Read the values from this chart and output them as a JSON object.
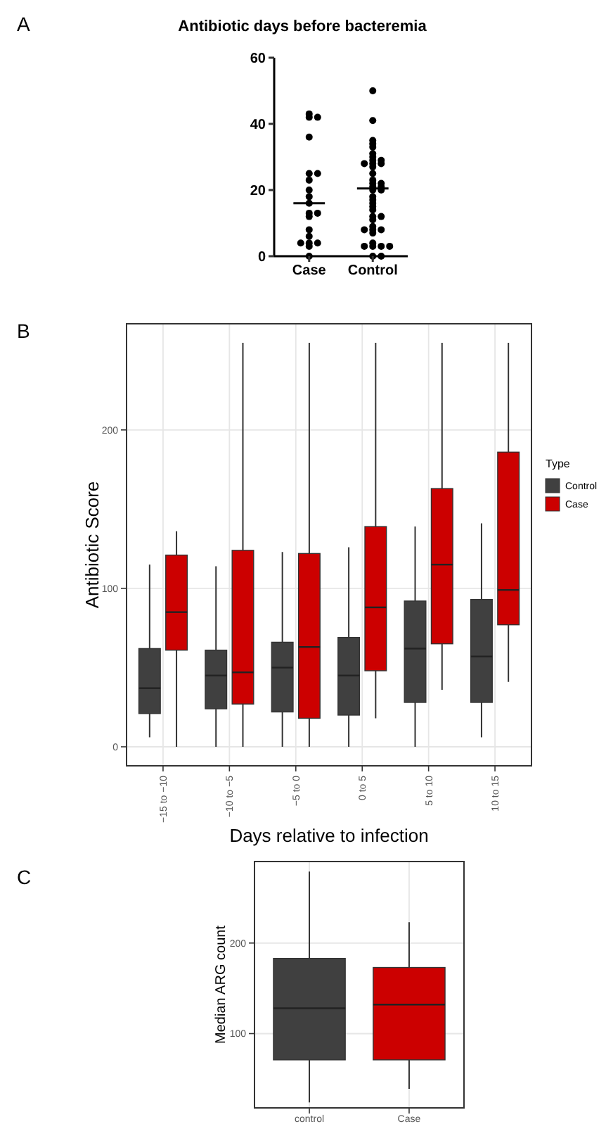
{
  "chart_data": [
    {
      "type": "scatter",
      "title": "Antibiotic days before bacteremia",
      "annotations": [
        "A"
      ],
      "categories": [
        "Case",
        "Control"
      ],
      "ylim": [
        0,
        60
      ],
      "yticks": [
        0,
        20,
        40,
        60
      ],
      "grid": false,
      "marker": "circle",
      "series": [
        {
          "color": "#000000",
          "x": [
            "Case",
            "Case",
            "Case",
            "Case",
            "Case",
            "Case",
            "Case",
            "Case",
            "Case",
            "Case",
            "Case",
            "Case",
            "Case",
            "Case",
            "Case",
            "Case",
            "Case",
            "Case",
            "Case",
            "Case",
            "Control",
            "Control",
            "Control",
            "Control",
            "Control",
            "Control",
            "Control",
            "Control",
            "Control",
            "Control",
            "Control",
            "Control",
            "Control",
            "Control",
            "Control",
            "Control",
            "Control",
            "Control",
            "Control",
            "Control",
            "Control",
            "Control",
            "Control",
            "Control",
            "Control",
            "Control",
            "Control",
            "Control",
            "Control",
            "Control",
            "Control",
            "Control",
            "Control",
            "Control",
            "Control",
            "Control",
            "Control",
            "Control",
            "Control",
            "Control",
            "Control"
          ],
          "values": [
            43,
            42,
            42,
            36,
            25,
            25,
            23,
            20,
            18,
            16,
            13,
            13,
            12,
            8,
            6,
            4,
            4,
            4,
            3,
            0,
            50,
            41,
            35,
            34,
            33,
            31,
            30,
            29,
            29,
            28,
            28,
            28,
            27,
            25,
            23,
            22,
            22,
            21,
            21,
            20,
            20,
            18,
            17,
            16,
            15,
            14,
            12,
            12,
            11,
            9,
            8,
            8,
            8,
            7,
            4,
            3,
            3,
            3,
            3,
            0,
            0
          ]
        },
        {
          "type": "box",
          "color": "#000000",
          "boxes": [
            {
              "low": 16,
              "q1": 16,
              "median": 16,
              "q3": 16,
              "high": 16
            },
            {
              "low": 20.5,
              "q1": 20.5,
              "median": 20.5,
              "q3": 20.5,
              "high": 20.5
            }
          ]
        }
      ]
    },
    {
      "type": "box",
      "annotations": [
        "B"
      ],
      "categories": [
        "−15 to −10",
        "−10 to −5",
        "−5 to 0",
        "0 to 5",
        "5 to 10",
        "10 to 15"
      ],
      "xlabel": "Days relative to infection",
      "ylabel": "Antibiotic Score",
      "ylim": [
        -12,
        267
      ],
      "yticks": [
        0,
        100,
        200
      ],
      "grid": true,
      "legend": "right",
      "legend_title": "Type",
      "series": [
        {
          "name": "Control",
          "color": "#404040",
          "boxes": [
            {
              "low": 6,
              "q1": 21,
              "median": 37,
              "q3": 62,
              "high": 115
            },
            {
              "low": 0,
              "q1": 24,
              "median": 45,
              "q3": 61,
              "high": 114
            },
            {
              "low": 0,
              "q1": 22,
              "median": 50,
              "q3": 66,
              "high": 123
            },
            {
              "low": 0,
              "q1": 20,
              "median": 45,
              "q3": 69,
              "high": 126
            },
            {
              "low": 0,
              "q1": 28,
              "median": 62,
              "q3": 92,
              "high": 139
            },
            {
              "low": 6,
              "q1": 28,
              "median": 57,
              "q3": 93,
              "high": 141
            }
          ]
        },
        {
          "name": "Case",
          "color": "#cc0000",
          "boxes": [
            {
              "low": 0,
              "q1": 61,
              "median": 85,
              "q3": 121,
              "high": 136
            },
            {
              "low": 0,
              "q1": 27,
              "median": 47,
              "q3": 124,
              "high": 255
            },
            {
              "low": 0,
              "q1": 18,
              "median": 63,
              "q3": 122,
              "high": 255
            },
            {
              "low": 18,
              "q1": 48,
              "median": 88,
              "q3": 139,
              "high": 255
            },
            {
              "low": 36,
              "q1": 65,
              "median": 115,
              "q3": 163,
              "high": 255
            },
            {
              "low": 41,
              "q1": 77,
              "median": 99,
              "q3": 186,
              "high": 255
            }
          ]
        }
      ]
    },
    {
      "type": "box",
      "annotations": [
        "C"
      ],
      "categories": [
        "control",
        "Case"
      ],
      "ylabel": "Median ARG count",
      "ylim": [
        18,
        290
      ],
      "yticks": [
        100,
        200
      ],
      "grid": true,
      "colors": [
        "#404040",
        "#cc0000"
      ],
      "boxes": [
        {
          "low": 24,
          "q1": 71,
          "median": 128,
          "q3": 183,
          "high": 279
        },
        {
          "low": 39,
          "q1": 71,
          "median": 132,
          "q3": 173,
          "high": 223
        }
      ]
    }
  ]
}
